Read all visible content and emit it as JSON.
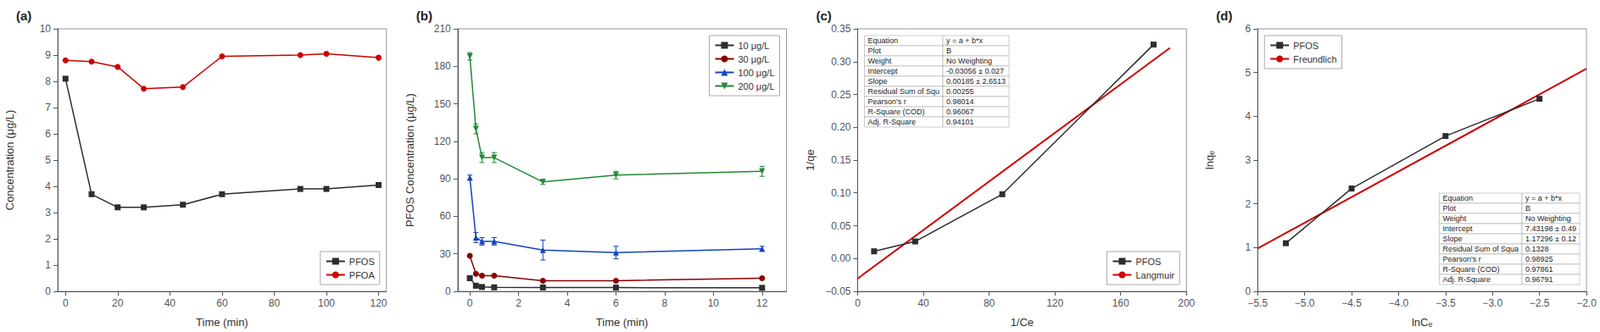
{
  "chart_data": [
    {
      "type": "line",
      "title": "(a)",
      "xlabel": "Time (min)",
      "ylabel": "Concentration (μg/L)",
      "xlim": [
        -3,
        123
      ],
      "ylim": [
        0,
        10
      ],
      "xticks": [
        0,
        20,
        40,
        60,
        80,
        100,
        120
      ],
      "yticks": [
        0,
        1,
        2,
        3,
        4,
        5,
        6,
        7,
        8,
        9,
        10
      ],
      "grid": false,
      "legend": "lower right",
      "series": [
        {
          "name": "PFOS",
          "color": "#2d2d2d",
          "marker": "square",
          "x": [
            0,
            10,
            20,
            30,
            45,
            60,
            90,
            100,
            120
          ],
          "values": [
            8.1,
            3.7,
            3.2,
            3.2,
            3.3,
            3.7,
            3.9,
            3.9,
            4.05
          ]
        },
        {
          "name": "PFOA",
          "color": "#cc0000",
          "marker": "circle",
          "x": [
            0,
            10,
            20,
            30,
            45,
            60,
            90,
            100,
            120
          ],
          "values": [
            8.8,
            8.75,
            8.55,
            7.72,
            7.78,
            8.95,
            9.0,
            9.05,
            8.9
          ]
        }
      ]
    },
    {
      "type": "line",
      "title": "(b)",
      "xlabel": "Time (min)",
      "ylabel": "PFOS Concentration (μg/L)",
      "xlim": [
        -0.5,
        13
      ],
      "ylim": [
        0,
        210
      ],
      "xticks": [
        0,
        2,
        4,
        6,
        8,
        10,
        12
      ],
      "yticks": [
        0,
        30,
        60,
        90,
        120,
        150,
        180,
        210
      ],
      "grid": false,
      "legend": "upper right",
      "series": [
        {
          "name": "10 μg/L",
          "color": "#2d2d2d",
          "marker": "square",
          "x": [
            0,
            0.25,
            0.5,
            1,
            3,
            6,
            12
          ],
          "values": [
            10.5,
            4.5,
            3.5,
            3.2,
            3.1,
            3.0,
            2.8
          ],
          "yerr": [
            0.3,
            0.3,
            0.2,
            0.2,
            0.2,
            0.2,
            0.2
          ]
        },
        {
          "name": "30 μg/L",
          "color": "#8b0000",
          "marker": "circle",
          "x": [
            0,
            0.25,
            0.5,
            1,
            3,
            6,
            12
          ],
          "values": [
            28.5,
            14.0,
            12.5,
            12.5,
            8.5,
            8.5,
            10.5
          ],
          "yerr": [
            1.0,
            0.5,
            0.5,
            0.5,
            0.5,
            0.5,
            0.5
          ]
        },
        {
          "name": "100 μg/L",
          "color": "#1144bb",
          "marker": "triangle",
          "x": [
            0,
            0.25,
            0.5,
            1,
            3,
            6,
            12
          ],
          "values": [
            91.0,
            43.0,
            40.0,
            40.0,
            33.0,
            31.0,
            34.0
          ],
          "yerr": [
            2.0,
            4.0,
            3.0,
            3.0,
            8.0,
            5.0,
            2.0
          ]
        },
        {
          "name": "200 μg/L",
          "color": "#228833",
          "marker": "triangle_down",
          "x": [
            0,
            0.25,
            0.5,
            1,
            3,
            6,
            12
          ],
          "values": [
            188.0,
            130.0,
            107.0,
            107.0,
            87.5,
            93.0,
            96.0
          ],
          "yerr": [
            3.0,
            4.0,
            4.0,
            4.0,
            2.0,
            3.0,
            4.0
          ]
        }
      ]
    },
    {
      "type": "line",
      "title": "(c)",
      "xlabel": "1/Ce",
      "ylabel": "1/qe",
      "xlim": [
        0,
        200
      ],
      "ylim": [
        -0.05,
        0.35
      ],
      "xticks": [
        0,
        40,
        80,
        120,
        160,
        200
      ],
      "yticks": [
        {
          "value": -0.05,
          "label": "−0.05"
        },
        {
          "value": 0,
          "label": "0.00"
        },
        0.05,
        {
          "value": 0.1,
          "label": "0.10"
        },
        0.15,
        {
          "value": 0.2,
          "label": "0.20"
        },
        0.25,
        {
          "value": 0.3,
          "label": "0.30"
        },
        0.35
      ],
      "grid": false,
      "legend": "lower right",
      "series": [
        {
          "name": "PFOS",
          "color": "#2d2d2d",
          "marker": "square",
          "x": [
            10.0,
            35.0,
            88.0,
            180.0
          ],
          "values": [
            0.011,
            0.026,
            0.098,
            0.326
          ]
        },
        {
          "name": "Langmuir",
          "color": "#cc0000",
          "marker": "none",
          "x": [
            0,
            190
          ],
          "values": [
            -0.03056,
            0.32094
          ]
        }
      ],
      "table": [
        [
          "Equation",
          "y = a + b*x"
        ],
        [
          "Plot",
          "B"
        ],
        [
          "Weight",
          "No Weighting"
        ],
        [
          "Intercept",
          "-0.03056 ± 0.027"
        ],
        [
          "Slope",
          "0.00185 ± 2.6513"
        ],
        [
          "Residual Sum of Squ",
          "0.00255"
        ],
        [
          "Pearson's r",
          "0.98014"
        ],
        [
          "R-Square (COD)",
          "0.96067"
        ],
        [
          "Adj. R-Square",
          "0.94101"
        ]
      ]
    },
    {
      "type": "line",
      "title": "(d)",
      "xlabel": "lnCₑ",
      "ylabel": "lnqₑ",
      "xlim": [
        -5.5,
        -2.0
      ],
      "ylim": [
        0,
        6
      ],
      "xticks": [
        {
          "value": -5.5,
          "label": "−5.5"
        },
        {
          "value": -5.0,
          "label": "−5.0"
        },
        {
          "value": -4.5,
          "label": "−4.5"
        },
        {
          "value": -4.0,
          "label": "−4.0"
        },
        {
          "value": -3.5,
          "label": "−3.5"
        },
        {
          "value": -3.0,
          "label": "−3.0"
        },
        {
          "value": -2.5,
          "label": "−2.5"
        },
        {
          "value": -2.0,
          "label": "−2.0"
        }
      ],
      "yticks": [
        0,
        1,
        2,
        3,
        4,
        5,
        6
      ],
      "grid": false,
      "legend": "upper left",
      "series": [
        {
          "name": "PFOS",
          "color": "#2d2d2d",
          "marker": "square",
          "x": [
            -5.2,
            -4.5,
            -3.5,
            -2.5
          ],
          "values": [
            1.1,
            2.35,
            3.55,
            4.4
          ]
        },
        {
          "name": "Freundlich",
          "color": "#cc0000",
          "marker": "none",
          "x": [
            -5.5,
            -2.0
          ],
          "values": [
            0.9807,
            5.08606
          ]
        }
      ],
      "table": [
        [
          "Equation",
          "y = a + b*x"
        ],
        [
          "Plot",
          "B"
        ],
        [
          "Weight",
          "No Weighting"
        ],
        [
          "Intercept",
          "7.43198 ± 0.49"
        ],
        [
          "Slope",
          "1.17296 ± 0.12"
        ],
        [
          "Residual Sum of Squa",
          "0.1328"
        ],
        [
          "Pearson's r",
          "0.98925"
        ],
        [
          "R-Square (COD)",
          "0.97861"
        ],
        [
          "Adj. R-Square",
          "0.96791"
        ]
      ]
    }
  ]
}
